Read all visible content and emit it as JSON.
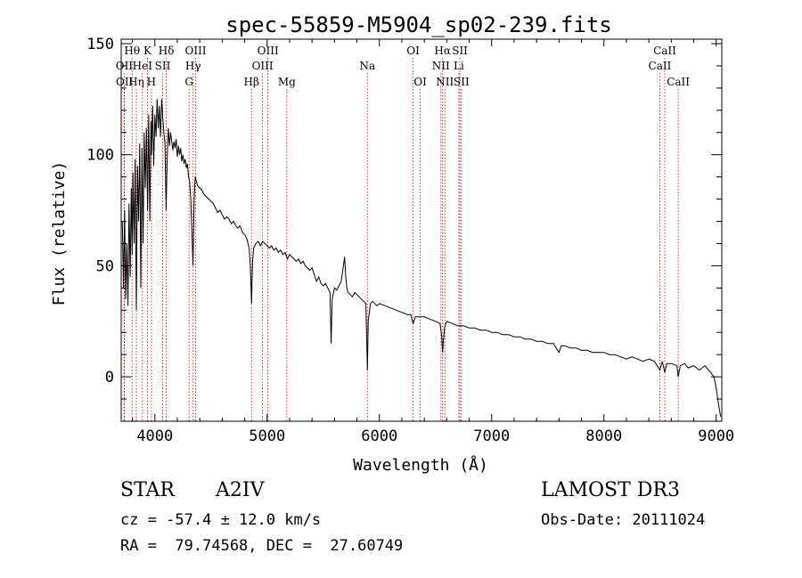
{
  "chart_data": {
    "type": "line",
    "title": "spec-55859-M5904_sp02-239.fits",
    "xlabel": "Wavelength (Å)",
    "ylabel": "Flux (relative)",
    "xlim": [
      3700,
      9050
    ],
    "ylim": [
      -20,
      152
    ],
    "x_ticks": [
      4000,
      5000,
      6000,
      7000,
      8000,
      9000
    ],
    "y_ticks": [
      0,
      50,
      100,
      150
    ],
    "grid": false,
    "line_color": "#000000",
    "marker_color": "#cc0000",
    "series": [
      {
        "name": "flux",
        "points": [
          [
            3710,
            70
          ],
          [
            3720,
            40
          ],
          [
            3730,
            75
          ],
          [
            3740,
            35
          ],
          [
            3750,
            60
          ],
          [
            3760,
            32
          ],
          [
            3770,
            78
          ],
          [
            3780,
            45
          ],
          [
            3790,
            85
          ],
          [
            3798,
            55
          ],
          [
            3805,
            92
          ],
          [
            3815,
            60
          ],
          [
            3825,
            98
          ],
          [
            3835,
            30
          ],
          [
            3845,
            95
          ],
          [
            3855,
            70
          ],
          [
            3865,
            105
          ],
          [
            3875,
            40
          ],
          [
            3885,
            103
          ],
          [
            3895,
            60
          ],
          [
            3905,
            110
          ],
          [
            3915,
            85
          ],
          [
            3925,
            112
          ],
          [
            3935,
            75
          ],
          [
            3945,
            118
          ],
          [
            3955,
            70
          ],
          [
            3965,
            115
          ],
          [
            3970,
            100
          ],
          [
            3980,
            122
          ],
          [
            3990,
            95
          ],
          [
            4000,
            118
          ],
          [
            4010,
            108
          ],
          [
            4020,
            125
          ],
          [
            4030,
            112
          ],
          [
            4040,
            122
          ],
          [
            4050,
            108
          ],
          [
            4060,
            125
          ],
          [
            4070,
            117
          ],
          [
            4080,
            110
          ],
          [
            4090,
            105
          ],
          [
            4100,
            75
          ],
          [
            4110,
            100
          ],
          [
            4120,
            112
          ],
          [
            4130,
            104
          ],
          [
            4140,
            110
          ],
          [
            4150,
            106
          ],
          [
            4160,
            102
          ],
          [
            4170,
            106
          ],
          [
            4180,
            103
          ],
          [
            4190,
            107
          ],
          [
            4200,
            99
          ],
          [
            4210,
            104
          ],
          [
            4220,
            100
          ],
          [
            4230,
            103
          ],
          [
            4240,
            97
          ],
          [
            4250,
            100
          ],
          [
            4260,
            96
          ],
          [
            4270,
            98
          ],
          [
            4280,
            94
          ],
          [
            4290,
            96
          ],
          [
            4300,
            90
          ],
          [
            4310,
            88
          ],
          [
            4320,
            80
          ],
          [
            4330,
            65
          ],
          [
            4340,
            50
          ],
          [
            4350,
            80
          ],
          [
            4360,
            90
          ],
          [
            4370,
            88
          ],
          [
            4380,
            86
          ],
          [
            4400,
            85
          ],
          [
            4420,
            84
          ],
          [
            4440,
            82
          ],
          [
            4460,
            81
          ],
          [
            4480,
            80
          ],
          [
            4500,
            79
          ],
          [
            4520,
            78
          ],
          [
            4540,
            76
          ],
          [
            4560,
            74
          ],
          [
            4580,
            75
          ],
          [
            4600,
            73
          ],
          [
            4620,
            71
          ],
          [
            4640,
            72
          ],
          [
            4660,
            71
          ],
          [
            4680,
            69
          ],
          [
            4700,
            70
          ],
          [
            4720,
            68
          ],
          [
            4740,
            67
          ],
          [
            4760,
            68
          ],
          [
            4780,
            65
          ],
          [
            4800,
            64
          ],
          [
            4820,
            62
          ],
          [
            4840,
            58
          ],
          [
            4850,
            50
          ],
          [
            4861,
            33
          ],
          [
            4870,
            52
          ],
          [
            4880,
            58
          ],
          [
            4900,
            60
          ],
          [
            4920,
            61
          ],
          [
            4940,
            59
          ],
          [
            4960,
            61
          ],
          [
            4980,
            60
          ],
          [
            5000,
            59
          ],
          [
            5020,
            58
          ],
          [
            5040,
            59
          ],
          [
            5060,
            57
          ],
          [
            5080,
            58
          ],
          [
            5100,
            56
          ],
          [
            5120,
            57
          ],
          [
            5140,
            55
          ],
          [
            5160,
            56
          ],
          [
            5180,
            53
          ],
          [
            5200,
            55
          ],
          [
            5220,
            54
          ],
          [
            5240,
            53
          ],
          [
            5260,
            52
          ],
          [
            5280,
            53
          ],
          [
            5300,
            51
          ],
          [
            5320,
            52
          ],
          [
            5340,
            50
          ],
          [
            5360,
            49
          ],
          [
            5380,
            48
          ],
          [
            5400,
            49
          ],
          [
            5420,
            46
          ],
          [
            5440,
            43
          ],
          [
            5460,
            45
          ],
          [
            5480,
            42
          ],
          [
            5500,
            41
          ],
          [
            5520,
            42
          ],
          [
            5540,
            40
          ],
          [
            5560,
            38
          ],
          [
            5570,
            15
          ],
          [
            5580,
            35
          ],
          [
            5600,
            40
          ],
          [
            5620,
            39
          ],
          [
            5640,
            41
          ],
          [
            5660,
            43
          ],
          [
            5680,
            50
          ],
          [
            5690,
            54
          ],
          [
            5700,
            45
          ],
          [
            5710,
            40
          ],
          [
            5720,
            38
          ],
          [
            5740,
            37
          ],
          [
            5760,
            36
          ],
          [
            5780,
            38
          ],
          [
            5800,
            37
          ],
          [
            5820,
            36
          ],
          [
            5840,
            35
          ],
          [
            5860,
            34
          ],
          [
            5880,
            33
          ],
          [
            5893,
            3
          ],
          [
            5900,
            25
          ],
          [
            5920,
            33
          ],
          [
            5940,
            34
          ],
          [
            5960,
            33
          ],
          [
            5980,
            32
          ],
          [
            6000,
            33
          ],
          [
            6050,
            32
          ],
          [
            6100,
            31
          ],
          [
            6150,
            30
          ],
          [
            6200,
            29
          ],
          [
            6250,
            28
          ],
          [
            6280,
            28
          ],
          [
            6300,
            24
          ],
          [
            6320,
            27
          ],
          [
            6350,
            27
          ],
          [
            6400,
            27
          ],
          [
            6450,
            26
          ],
          [
            6500,
            25
          ],
          [
            6540,
            24
          ],
          [
            6555,
            18
          ],
          [
            6563,
            11
          ],
          [
            6570,
            16
          ],
          [
            6580,
            22
          ],
          [
            6600,
            25
          ],
          [
            6650,
            24
          ],
          [
            6700,
            23
          ],
          [
            6750,
            23
          ],
          [
            6800,
            22
          ],
          [
            6850,
            22
          ],
          [
            6900,
            21
          ],
          [
            6950,
            21
          ],
          [
            7000,
            20
          ],
          [
            7050,
            20
          ],
          [
            7100,
            19
          ],
          [
            7150,
            19
          ],
          [
            7200,
            18
          ],
          [
            7250,
            18
          ],
          [
            7300,
            17
          ],
          [
            7350,
            17
          ],
          [
            7400,
            16
          ],
          [
            7450,
            16
          ],
          [
            7500,
            15
          ],
          [
            7550,
            15
          ],
          [
            7600,
            11
          ],
          [
            7620,
            14
          ],
          [
            7650,
            14
          ],
          [
            7700,
            13
          ],
          [
            7750,
            13
          ],
          [
            7800,
            12
          ],
          [
            7850,
            12
          ],
          [
            7900,
            11
          ],
          [
            7950,
            11
          ],
          [
            8000,
            11
          ],
          [
            8050,
            10
          ],
          [
            8100,
            10
          ],
          [
            8150,
            9
          ],
          [
            8200,
            8
          ],
          [
            8250,
            9
          ],
          [
            8300,
            8
          ],
          [
            8350,
            7
          ],
          [
            8400,
            8
          ],
          [
            8450,
            7
          ],
          [
            8498,
            3
          ],
          [
            8520,
            7
          ],
          [
            8542,
            2
          ],
          [
            8560,
            6
          ],
          [
            8600,
            6
          ],
          [
            8650,
            5
          ],
          [
            8662,
            0
          ],
          [
            8680,
            5
          ],
          [
            8720,
            6
          ],
          [
            8750,
            4
          ],
          [
            8800,
            5
          ],
          [
            8850,
            3
          ],
          [
            8900,
            5
          ],
          [
            8950,
            2
          ],
          [
            8980,
            0
          ],
          [
            9000,
            -5
          ],
          [
            9020,
            -12
          ],
          [
            9040,
            -18
          ]
        ]
      }
    ],
    "line_markers": [
      {
        "label": "Hθ",
        "x": 3797,
        "row": 0
      },
      {
        "label": "OII",
        "x": 3727,
        "row": 1
      },
      {
        "label": "OII",
        "x": 3729,
        "row": 2
      },
      {
        "label": "Hη",
        "x": 3835,
        "row": 2
      },
      {
        "label": "HeI",
        "x": 3889,
        "row": 1
      },
      {
        "label": "K",
        "x": 3934,
        "row": 0
      },
      {
        "label": "H",
        "x": 3969,
        "row": 2
      },
      {
        "label": "SII",
        "x": 4069,
        "row": 1
      },
      {
        "label": "Hδ",
        "x": 4102,
        "row": 0
      },
      {
        "label": "OIII",
        "x": 4363,
        "row": 0
      },
      {
        "label": "Hγ",
        "x": 4341,
        "row": 1
      },
      {
        "label": "G",
        "x": 4305,
        "row": 2
      },
      {
        "label": "Hβ",
        "x": 4861,
        "row": 2
      },
      {
        "label": "OIII",
        "x": 5007,
        "row": 0
      },
      {
        "label": "OIII",
        "x": 4959,
        "row": 1
      },
      {
        "label": "Mg",
        "x": 5175,
        "row": 2
      },
      {
        "label": "Na",
        "x": 5893,
        "row": 1
      },
      {
        "label": "OI",
        "x": 6300,
        "row": 0
      },
      {
        "label": "OI",
        "x": 6364,
        "row": 2
      },
      {
        "label": "Hα",
        "x": 6563,
        "row": 0
      },
      {
        "label": "NII",
        "x": 6548,
        "row": 1
      },
      {
        "label": "NII",
        "x": 6583,
        "row": 2
      },
      {
        "label": "SII",
        "x": 6717,
        "row": 0
      },
      {
        "label": "Li",
        "x": 6708,
        "row": 1
      },
      {
        "label": "SII",
        "x": 6731,
        "row": 2
      },
      {
        "label": "CaII",
        "x": 8542,
        "row": 0
      },
      {
        "label": "CaII",
        "x": 8498,
        "row": 1
      },
      {
        "label": "CaII",
        "x": 8662,
        "row": 2
      }
    ]
  },
  "info": {
    "object_class": "STAR",
    "subclass": "A2IV",
    "survey": "LAMOST DR3",
    "redshift_line": "cz = -57.4 ± 12.0 km/s",
    "obs_date_line": "Obs-Date: 20111024",
    "coords_line": "RA =  79.74568, DEC =  27.60749"
  }
}
